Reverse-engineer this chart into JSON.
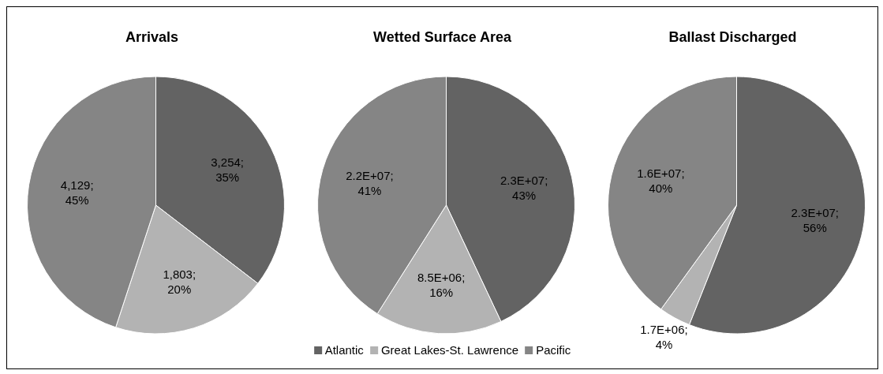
{
  "chart_data": [
    {
      "type": "pie",
      "title": "Arrivals",
      "categories": [
        null,
        null,
        null
      ],
      "values": [
        3254,
        1803,
        4129
      ],
      "colors": [
        "#636363",
        "#b3b3b3",
        "#858585"
      ],
      "value_labels": [
        "3,254; 35%",
        "1,803; 20%",
        "4,129; 45%"
      ]
    },
    {
      "type": "pie",
      "title": "Wetted Surface Area",
      "categories": [
        "Atlantic",
        "Great Lakes-St. Lawrence",
        "Pacific"
      ],
      "values": [
        43,
        16,
        41
      ],
      "colors": [
        "#636363",
        "#b3b3b3",
        "#858585"
      ],
      "value_labels": [
        "2.3E+07; 43%",
        "8.5E+06; 16%",
        "2.2E+07; 41%"
      ],
      "legend": "bottom"
    },
    {
      "type": "pie",
      "title": "Ballast Discharged",
      "categories": [
        null,
        null,
        null
      ],
      "values": [
        56,
        4,
        40
      ],
      "colors": [
        "#636363",
        "#b3b3b3",
        "#858585"
      ],
      "value_labels": [
        "2.3E+07; 56%",
        "1.7E+06; 4%",
        "1.6E+07; 40%"
      ]
    }
  ]
}
